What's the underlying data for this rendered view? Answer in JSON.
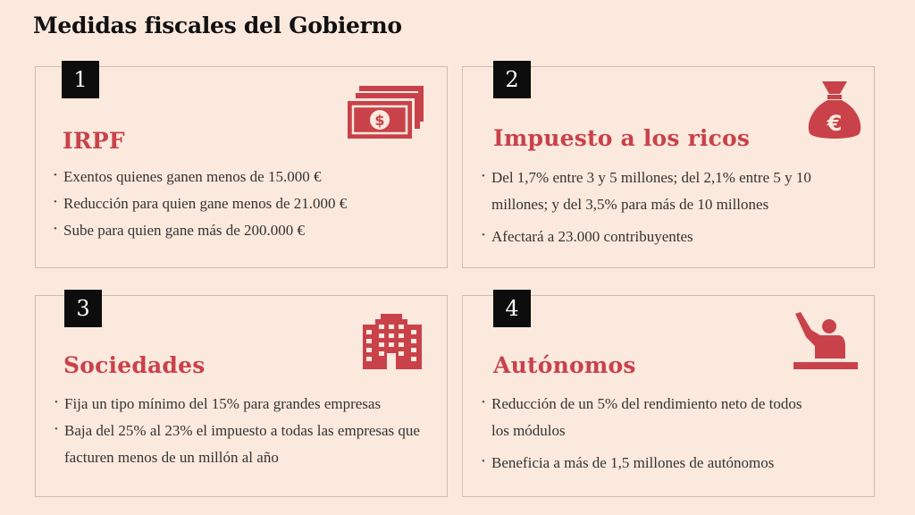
{
  "title": "Medidas fiscales del Gobierno",
  "accent_color": "#c9424a",
  "cards": [
    {
      "number": "1",
      "title": "IRPF",
      "icon": "money-bills-icon",
      "bullets": [
        "Exentos quienes ganen menos de 15.000 €",
        "Reducción para quien gane menos de 21.000 €",
        "Sube para quien gane más de 200.000 €"
      ]
    },
    {
      "number": "2",
      "title": "Impuesto a los ricos",
      "icon": "euro-money-bag-icon",
      "bullets": [
        "Del 1,7% entre 3 y 5 millones; del 2,1% entre 5 y 10 millones; y del 3,5% para más de 10 millones",
        "Afectará a 23.000 contribuyentes"
      ]
    },
    {
      "number": "3",
      "title": "Sociedades",
      "icon": "office-building-icon",
      "bullets": [
        "Fija un tipo mínimo del 15% para grandes empresas",
        "Baja del 25% al 23% el impuesto a todas las empresas que facturen menos de un millón al año"
      ]
    },
    {
      "number": "4",
      "title": "Autónomos",
      "icon": "worker-at-desk-icon",
      "bullets": [
        "Reducción de un 5% del rendimiento neto de todos los módulos",
        "Beneficia a más de 1,5 millones de autónomos"
      ]
    }
  ]
}
